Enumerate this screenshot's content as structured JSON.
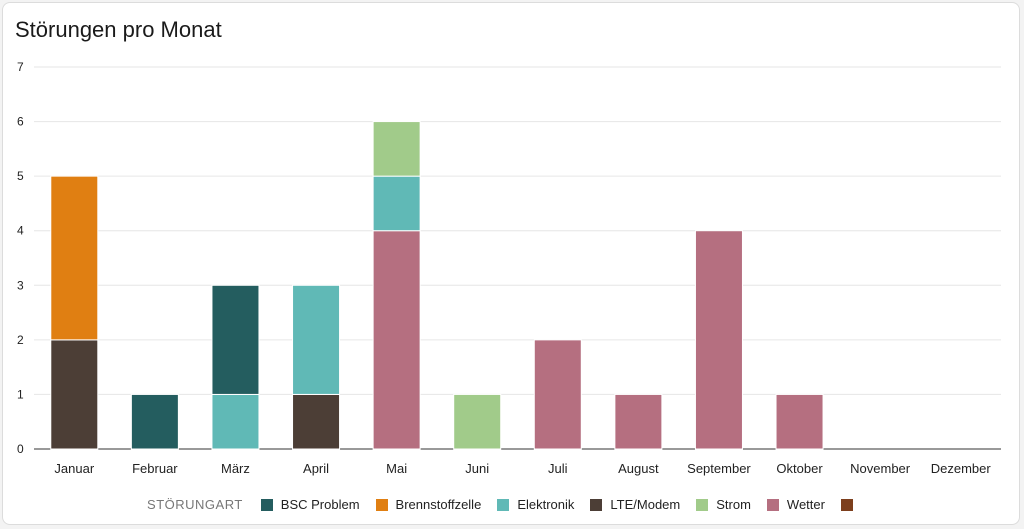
{
  "chart_data": {
    "type": "bar",
    "stacked": true,
    "title": "Störungen pro Monat",
    "legend_title": "STÖRUNGART",
    "categories": [
      "Januar",
      "Februar",
      "März",
      "April",
      "Mai",
      "Juni",
      "Juli",
      "August",
      "September",
      "Oktober",
      "November",
      "Dezember"
    ],
    "ylim": [
      0,
      7
    ],
    "yticks": [
      0,
      1,
      2,
      3,
      4,
      5,
      6,
      7
    ],
    "grid": true,
    "legend_position": "bottom",
    "series": [
      {
        "name": "BSC Problem",
        "color": "#245d5f",
        "values": [
          0,
          1,
          2,
          0,
          0,
          0,
          0,
          0,
          0,
          0,
          0,
          0
        ]
      },
      {
        "name": "Brennstoffzelle",
        "color": "#e07f12",
        "values": [
          3,
          0,
          0,
          0,
          0,
          0,
          0,
          0,
          0,
          0,
          0,
          0
        ]
      },
      {
        "name": "Elektronik",
        "color": "#60b9b6",
        "values": [
          0,
          0,
          1,
          2,
          1,
          0,
          0,
          0,
          0,
          0,
          0,
          0
        ]
      },
      {
        "name": "LTE/Modem",
        "color": "#4c3e36",
        "values": [
          2,
          0,
          0,
          1,
          0,
          0,
          0,
          0,
          0,
          0,
          0,
          0
        ]
      },
      {
        "name": "Strom",
        "color": "#a1cb8a",
        "values": [
          0,
          0,
          0,
          0,
          1,
          1,
          0,
          0,
          0,
          0,
          0,
          0
        ]
      },
      {
        "name": "Wetter",
        "color": "#b56f80",
        "values": [
          0,
          0,
          0,
          0,
          4,
          0,
          2,
          1,
          4,
          1,
          0,
          0
        ]
      },
      {
        "name": "",
        "color": "#7d3f1d",
        "values": [
          0,
          0,
          0,
          0,
          0,
          0,
          0,
          0,
          0,
          0,
          0,
          0
        ]
      }
    ],
    "stack_order": [
      "LTE/Modem",
      "Wetter",
      "Elektronik",
      "Strom",
      "BSC Problem",
      "Brennstoffzelle",
      ""
    ]
  }
}
